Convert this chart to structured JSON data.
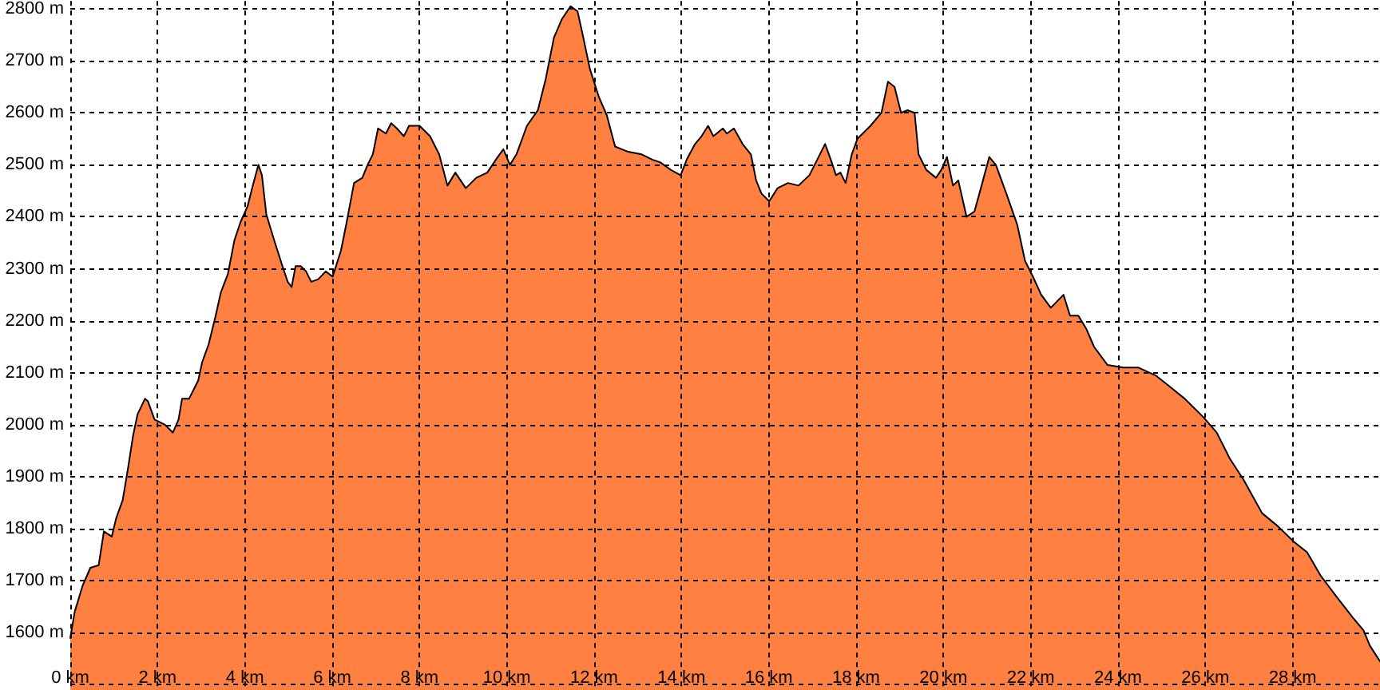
{
  "chart_data": {
    "type": "area",
    "color": "#ff8040",
    "x": [
      0,
      0.1,
      0.28,
      0.46,
      0.65,
      0.77,
      0.95,
      1.05,
      1.2,
      1.32,
      1.44,
      1.54,
      1.71,
      1.78,
      1.93,
      2.17,
      2.35,
      2.48,
      2.56,
      2.72,
      2.93,
      3.02,
      3.17,
      3.33,
      3.45,
      3.61,
      3.76,
      3.9,
      4.06,
      4.18,
      4.31,
      4.39,
      4.49,
      4.67,
      4.86,
      4.98,
      5.07,
      5.16,
      5.28,
      5.4,
      5.52,
      5.68,
      5.85,
      6.01,
      6.2,
      6.32,
      6.5,
      6.69,
      6.81,
      6.93,
      7.05,
      7.23,
      7.35,
      7.48,
      7.64,
      7.76,
      8.0,
      8.24,
      8.45,
      8.64,
      8.82,
      9.06,
      9.3,
      9.55,
      9.79,
      9.92,
      10.07,
      10.22,
      10.46,
      10.71,
      10.89,
      11.08,
      11.26,
      11.46,
      11.62,
      11.75,
      11.9,
      12.11,
      12.29,
      12.48,
      12.78,
      13.09,
      13.33,
      13.51,
      13.76,
      13.98,
      14.12,
      14.31,
      14.46,
      14.61,
      14.73,
      14.95,
      15.04,
      15.2,
      15.4,
      15.59,
      15.71,
      15.83,
      16.01,
      16.2,
      16.44,
      16.68,
      16.93,
      17.11,
      17.29,
      17.42,
      17.54,
      17.64,
      17.76,
      17.9,
      18.03,
      18.33,
      18.58,
      18.73,
      18.88,
      19.03,
      19.18,
      19.34,
      19.43,
      19.61,
      19.83,
      19.95,
      20.08,
      20.22,
      20.34,
      20.53,
      20.71,
      20.89,
      21.05,
      21.2,
      21.44,
      21.69,
      21.87,
      22.05,
      22.24,
      22.46,
      22.75,
      22.9,
      23.09,
      23.27,
      23.45,
      23.76,
      24.12,
      24.47,
      24.86,
      25.16,
      25.53,
      25.95,
      26.26,
      26.56,
      26.87,
      27.3,
      27.66,
      28.03,
      28.33,
      28.64,
      29.0,
      29.37,
      29.62,
      29.77,
      30
    ],
    "values": [
      1590,
      1640,
      1690,
      1725,
      1730,
      1795,
      1785,
      1820,
      1855,
      1915,
      1980,
      2020,
      2050,
      2045,
      2010,
      2000,
      1985,
      2010,
      2050,
      2050,
      2085,
      2120,
      2155,
      2210,
      2255,
      2290,
      2355,
      2390,
      2420,
      2460,
      2500,
      2480,
      2405,
      2355,
      2305,
      2275,
      2265,
      2305,
      2305,
      2295,
      2275,
      2280,
      2295,
      2285,
      2335,
      2385,
      2465,
      2475,
      2500,
      2520,
      2570,
      2560,
      2580,
      2570,
      2555,
      2575,
      2575,
      2555,
      2520,
      2460,
      2485,
      2455,
      2475,
      2485,
      2515,
      2530,
      2500,
      2520,
      2575,
      2605,
      2665,
      2745,
      2780,
      2805,
      2795,
      2745,
      2685,
      2630,
      2595,
      2535,
      2525,
      2520,
      2510,
      2505,
      2490,
      2480,
      2510,
      2540,
      2555,
      2575,
      2555,
      2570,
      2560,
      2570,
      2540,
      2520,
      2470,
      2445,
      2430,
      2455,
      2465,
      2460,
      2480,
      2510,
      2540,
      2510,
      2480,
      2485,
      2465,
      2520,
      2550,
      2575,
      2600,
      2660,
      2650,
      2600,
      2605,
      2600,
      2520,
      2490,
      2475,
      2490,
      2515,
      2460,
      2470,
      2400,
      2410,
      2465,
      2515,
      2500,
      2445,
      2385,
      2315,
      2285,
      2250,
      2225,
      2250,
      2210,
      2210,
      2185,
      2150,
      2115,
      2110,
      2110,
      2095,
      2075,
      2050,
      2015,
      1985,
      1935,
      1895,
      1830,
      1805,
      1775,
      1755,
      1710,
      1670,
      1630,
      1605,
      1575,
      1545
    ],
    "xlim": [
      0,
      30
    ],
    "xticks": [
      {
        "value": 0,
        "label": "0 km"
      },
      {
        "value": 2,
        "label": "2 km"
      },
      {
        "value": 4,
        "label": "4 km"
      },
      {
        "value": 6,
        "label": "6 km"
      },
      {
        "value": 8,
        "label": "8 km"
      },
      {
        "value": 10,
        "label": "10 km"
      },
      {
        "value": 12,
        "label": "12 km"
      },
      {
        "value": 14,
        "label": "14 km"
      },
      {
        "value": 16,
        "label": "16 km"
      },
      {
        "value": 18,
        "label": "18 km"
      },
      {
        "value": 20,
        "label": "20 km"
      },
      {
        "value": 22,
        "label": "22 km"
      },
      {
        "value": 24,
        "label": "24 km"
      },
      {
        "value": 26,
        "label": "26 km"
      },
      {
        "value": 28,
        "label": "28 km"
      }
    ],
    "ylim": [
      1490,
      2815
    ],
    "yticks": [
      {
        "value": 1500,
        "label": null
      },
      {
        "value": 1600,
        "label": "1600 m"
      },
      {
        "value": 1700,
        "label": "1700 m"
      },
      {
        "value": 1800,
        "label": "1800 m"
      },
      {
        "value": 1900,
        "label": "1900 m"
      },
      {
        "value": 2000,
        "label": "2000 m"
      },
      {
        "value": 2100,
        "label": "2100 m"
      },
      {
        "value": 2200,
        "label": "2200 m"
      },
      {
        "value": 2300,
        "label": "2300 m"
      },
      {
        "value": 2400,
        "label": "2400 m"
      },
      {
        "value": 2500,
        "label": "2500 m"
      },
      {
        "value": 2600,
        "label": "2600 m"
      },
      {
        "value": 2700,
        "label": "2700 m"
      },
      {
        "value": 2800,
        "label": "2800 m"
      }
    ],
    "grid": true
  }
}
